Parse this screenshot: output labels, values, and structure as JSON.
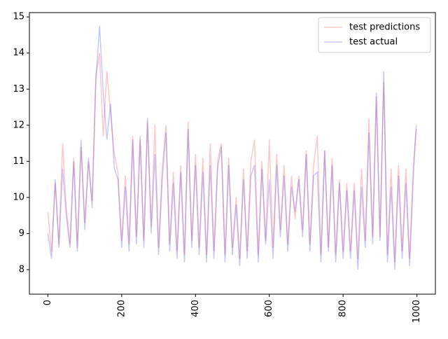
{
  "chart_data": {
    "type": "line",
    "x": [
      0,
      10,
      20,
      30,
      40,
      50,
      60,
      70,
      80,
      90,
      100,
      110,
      120,
      130,
      140,
      150,
      160,
      170,
      180,
      190,
      200,
      210,
      220,
      230,
      240,
      250,
      260,
      270,
      280,
      290,
      300,
      310,
      320,
      330,
      340,
      350,
      360,
      370,
      380,
      390,
      400,
      410,
      420,
      430,
      440,
      450,
      460,
      470,
      480,
      490,
      500,
      510,
      520,
      530,
      540,
      550,
      560,
      570,
      580,
      590,
      600,
      610,
      620,
      630,
      640,
      650,
      660,
      670,
      680,
      690,
      700,
      710,
      720,
      730,
      740,
      750,
      760,
      770,
      780,
      790,
      800,
      810,
      820,
      830,
      840,
      850,
      860,
      870,
      880,
      890,
      900,
      910,
      920,
      930,
      940,
      950,
      960,
      970,
      980,
      990,
      998
    ],
    "series": [
      {
        "name": "test predictions",
        "color": "red",
        "values": [
          9.6,
          8.5,
          10.4,
          8.7,
          11.5,
          9.7,
          8.7,
          11.1,
          8.6,
          11.4,
          9.3,
          11.0,
          9.9,
          13.4,
          14.0,
          11.7,
          13.5,
          12.3,
          11.2,
          10.7,
          8.8,
          10.6,
          8.7,
          11.7,
          8.9,
          11.6,
          8.8,
          12.1,
          9.2,
          12.0,
          8.6,
          10.8,
          12.0,
          8.7,
          10.7,
          8.5,
          10.9,
          8.4,
          12.1,
          8.8,
          11.2,
          8.6,
          11.1,
          8.4,
          11.5,
          8.5,
          11.0,
          11.5,
          8.4,
          11.1,
          8.6,
          10.0,
          8.3,
          10.8,
          8.5,
          11.0,
          11.6,
          8.4,
          11.0,
          8.8,
          11.6,
          8.6,
          11.2,
          9.1,
          10.9,
          8.7,
          10.6,
          9.4,
          10.6,
          9.1,
          11.3,
          8.7,
          10.9,
          11.7,
          8.4,
          11.3,
          8.6,
          11.1,
          8.4,
          10.5,
          8.5,
          10.4,
          8.5,
          10.4,
          8.3,
          10.8,
          8.8,
          12.2,
          8.9,
          12.8,
          8.9,
          13.2,
          8.4,
          10.8,
          8.2,
          10.9,
          8.5,
          10.8,
          8.3,
          10.9,
          11.9
        ]
      },
      {
        "name": "test actual",
        "color": "blue",
        "values": [
          9.0,
          8.3,
          10.5,
          8.6,
          10.8,
          9.5,
          8.6,
          11.0,
          8.5,
          11.6,
          9.1,
          11.1,
          9.7,
          13.2,
          14.75,
          12.9,
          11.6,
          12.6,
          10.8,
          10.5,
          8.6,
          10.3,
          8.5,
          11.6,
          8.7,
          11.7,
          8.6,
          12.2,
          9.0,
          11.2,
          8.4,
          10.5,
          11.8,
          8.5,
          10.4,
          8.3,
          10.7,
          8.2,
          11.9,
          8.6,
          10.9,
          8.4,
          10.7,
          8.2,
          10.9,
          8.3,
          10.8,
          11.4,
          8.2,
          10.9,
          8.4,
          9.8,
          8.1,
          10.5,
          8.3,
          10.6,
          10.9,
          8.2,
          10.8,
          8.7,
          10.5,
          8.3,
          10.9,
          8.9,
          10.6,
          8.5,
          10.3,
          9.6,
          10.5,
          8.9,
          11.2,
          8.5,
          10.6,
          10.7,
          8.2,
          11.3,
          8.5,
          10.9,
          8.2,
          10.4,
          8.3,
          10.2,
          8.3,
          10.2,
          8.0,
          10.3,
          8.6,
          11.8,
          8.7,
          12.9,
          8.8,
          13.5,
          8.2,
          10.3,
          8.0,
          10.6,
          8.3,
          10.4,
          8.1,
          10.5,
          12.0
        ]
      }
    ],
    "alpha": 0.22,
    "xlim": [
      -50,
      1050
    ],
    "xticks": [
      0,
      200,
      400,
      600,
      800,
      1000
    ],
    "ylim": [
      7.32,
      15.12
    ],
    "yticks": [
      8,
      9,
      10,
      11,
      12,
      13,
      14,
      15
    ],
    "legend": "upper right"
  }
}
